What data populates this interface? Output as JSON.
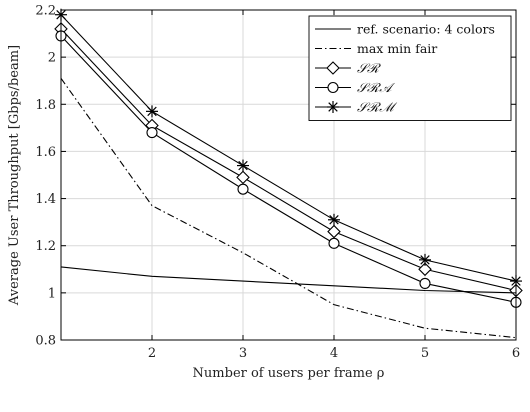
{
  "chart_data": {
    "type": "line",
    "xlabel": "Number of users per frame ρ",
    "ylabel": "Average User Throughput [Gbps/beam]",
    "xlim": [
      1,
      6
    ],
    "ylim": [
      0.8,
      2.2
    ],
    "grid": true,
    "legend_position": "top-right",
    "x_ticks": [
      {
        "value": 2,
        "label": "2"
      },
      {
        "value": 3,
        "label": "3"
      },
      {
        "value": 4,
        "label": "4"
      },
      {
        "value": 5,
        "label": "5"
      },
      {
        "value": 6,
        "label": "6"
      }
    ],
    "y_ticks": [
      {
        "value": 0.8,
        "label": "0.8"
      },
      {
        "value": 1.0,
        "label": "1"
      },
      {
        "value": 1.2,
        "label": "1.2"
      },
      {
        "value": 1.4,
        "label": "1.4"
      },
      {
        "value": 1.6,
        "label": "1.6"
      },
      {
        "value": 1.8,
        "label": "1.8"
      },
      {
        "value": 2.0,
        "label": "2"
      },
      {
        "value": 2.2,
        "label": "2.2"
      }
    ],
    "series": [
      {
        "name": "ref. scenario: 4 colors",
        "style": "solid",
        "marker": "none",
        "color": "#000000",
        "x": [
          1,
          2,
          3,
          4,
          5,
          6
        ],
        "y": [
          1.11,
          1.07,
          1.05,
          1.03,
          1.01,
          1.0
        ]
      },
      {
        "name": "max min fair",
        "style": "dashdot",
        "marker": "none",
        "color": "#000000",
        "x": [
          1,
          2,
          3,
          4,
          5,
          6
        ],
        "y": [
          1.91,
          1.37,
          1.17,
          0.95,
          0.85,
          0.81
        ]
      },
      {
        "name": "𝒮ℛ",
        "style": "solid",
        "marker": "diamond",
        "color": "#000000",
        "x": [
          1,
          2,
          3,
          4,
          5,
          6
        ],
        "y": [
          2.12,
          1.71,
          1.49,
          1.26,
          1.1,
          1.01
        ]
      },
      {
        "name": "𝒮ℛ𝒜",
        "style": "solid",
        "marker": "circle",
        "color": "#000000",
        "x": [
          1,
          2,
          3,
          4,
          5,
          6
        ],
        "y": [
          2.09,
          1.68,
          1.44,
          1.21,
          1.04,
          0.96
        ]
      },
      {
        "name": "𝒮ℛℳ",
        "style": "solid",
        "marker": "star",
        "color": "#000000",
        "x": [
          1,
          2,
          3,
          4,
          5,
          6
        ],
        "y": [
          2.18,
          1.77,
          1.54,
          1.31,
          1.14,
          1.05
        ]
      }
    ]
  }
}
